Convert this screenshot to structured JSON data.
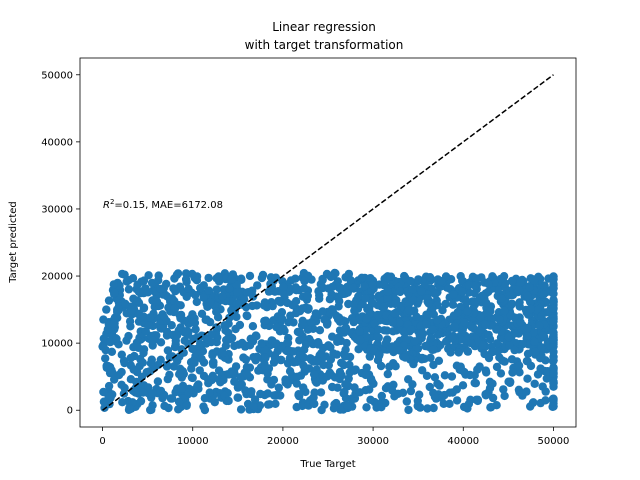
{
  "chart_data": {
    "type": "scatter",
    "title_line1": "Linear regression",
    "title_line2": "with target transformation",
    "xlabel": "True Target",
    "ylabel": "Target predicted",
    "xlim": [
      -2500,
      52500
    ],
    "ylim": [
      -2500,
      52500
    ],
    "xticks": [
      0,
      10000,
      20000,
      30000,
      40000,
      50000
    ],
    "yticks": [
      0,
      10000,
      20000,
      30000,
      40000,
      50000
    ],
    "grid": false,
    "marker_color": "#1f77b4",
    "reference_line": {
      "x": [
        0,
        50000
      ],
      "y": [
        0,
        50000
      ],
      "style": "dashed",
      "color": "#000000"
    },
    "annotation": {
      "r2_label": "R",
      "r2_sup": "2",
      "text": "=0.15, MAE=6172.08",
      "x": 0,
      "y": 30000
    },
    "scatter_regions": [
      {
        "x": [
          0,
          50000
        ],
        "y": [
          0,
          20000
        ],
        "approx_points": 1600,
        "description": "dense band"
      },
      {
        "x": [
          28000,
          50000
        ],
        "y": [
          0,
          9000
        ],
        "approx_points": 180,
        "description": "sparser lower-right cluster"
      }
    ]
  }
}
